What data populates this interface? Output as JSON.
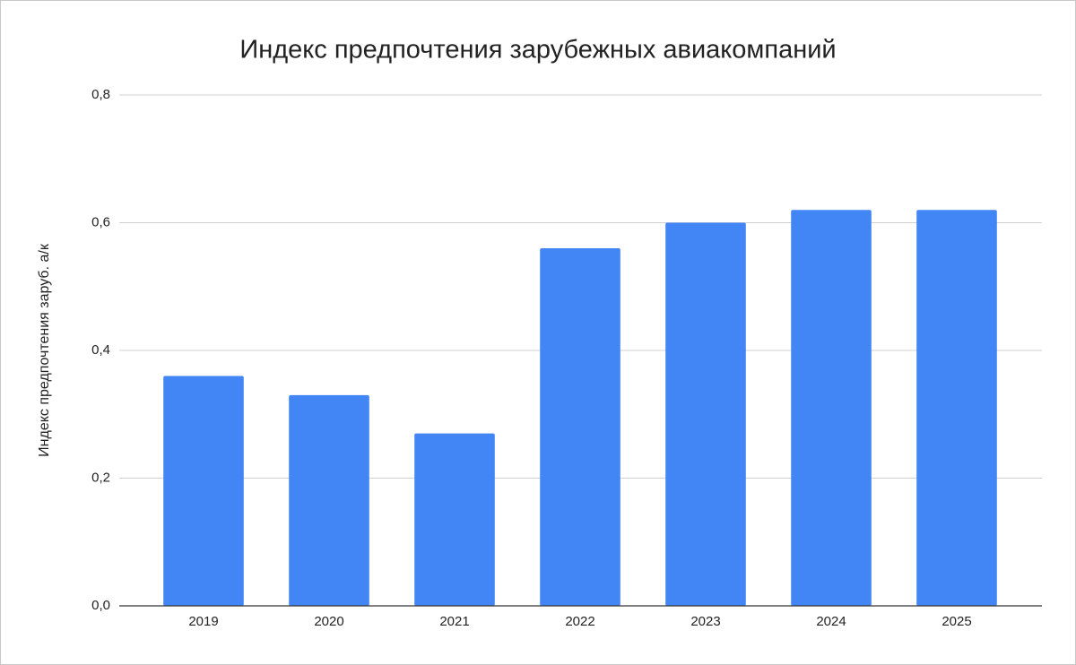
{
  "chart_data": {
    "type": "bar",
    "title": "Индекс предпочтения зарубежных авиакомпаний",
    "y_label": "Индекс предпочтения заруб. а/к",
    "categories": [
      "2019",
      "2020",
      "2021",
      "2022",
      "2023",
      "2024",
      "2025"
    ],
    "values": [
      0.36,
      0.33,
      0.27,
      0.56,
      0.6,
      0.62,
      0.62
    ],
    "color": "#4285f4",
    "ylim": [
      0,
      0.8
    ],
    "yticks": [
      {
        "value": 0,
        "label": "0,0"
      },
      {
        "value": 0.2,
        "label": "0,2"
      },
      {
        "value": 0.4,
        "label": "0,4"
      },
      {
        "value": 0.6,
        "label": "0,6"
      },
      {
        "value": 0.8,
        "label": "0,8"
      }
    ],
    "grid": true
  }
}
